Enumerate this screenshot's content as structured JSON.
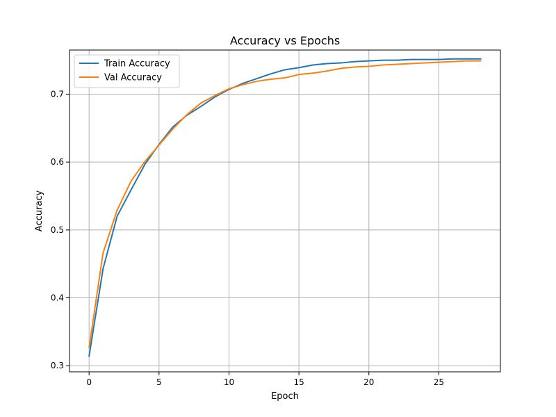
{
  "chart_data": {
    "type": "line",
    "title": "Accuracy vs Epochs",
    "xlabel": "Epoch",
    "ylabel": "Accuracy",
    "xlim": [
      -1.4,
      29.4
    ],
    "ylim": [
      0.291,
      0.765
    ],
    "xticks": [
      0,
      5,
      10,
      15,
      20,
      25
    ],
    "yticks": [
      0.3,
      0.4,
      0.5,
      0.6,
      0.7
    ],
    "grid": true,
    "legend_position": "top-left",
    "x": [
      0,
      1,
      2,
      3,
      4,
      5,
      6,
      7,
      8,
      9,
      10,
      11,
      12,
      13,
      14,
      15,
      16,
      17,
      18,
      19,
      20,
      21,
      22,
      23,
      24,
      25,
      26,
      27,
      28
    ],
    "series": [
      {
        "name": "Train Accuracy",
        "color": "#1f77b4",
        "values": [
          0.314,
          0.443,
          0.52,
          0.559,
          0.597,
          0.626,
          0.652,
          0.669,
          0.682,
          0.696,
          0.707,
          0.716,
          0.723,
          0.73,
          0.736,
          0.739,
          0.743,
          0.745,
          0.746,
          0.748,
          0.749,
          0.75,
          0.75,
          0.751,
          0.751,
          0.751,
          0.752,
          0.752,
          0.752
        ]
      },
      {
        "name": "Val Accuracy",
        "color": "#ff7f0e",
        "values": [
          0.327,
          0.466,
          0.529,
          0.572,
          0.601,
          0.625,
          0.649,
          0.67,
          0.687,
          0.698,
          0.708,
          0.714,
          0.719,
          0.722,
          0.724,
          0.729,
          0.731,
          0.734,
          0.738,
          0.74,
          0.741,
          0.743,
          0.744,
          0.745,
          0.746,
          0.747,
          0.748,
          0.749,
          0.749
        ]
      }
    ]
  }
}
